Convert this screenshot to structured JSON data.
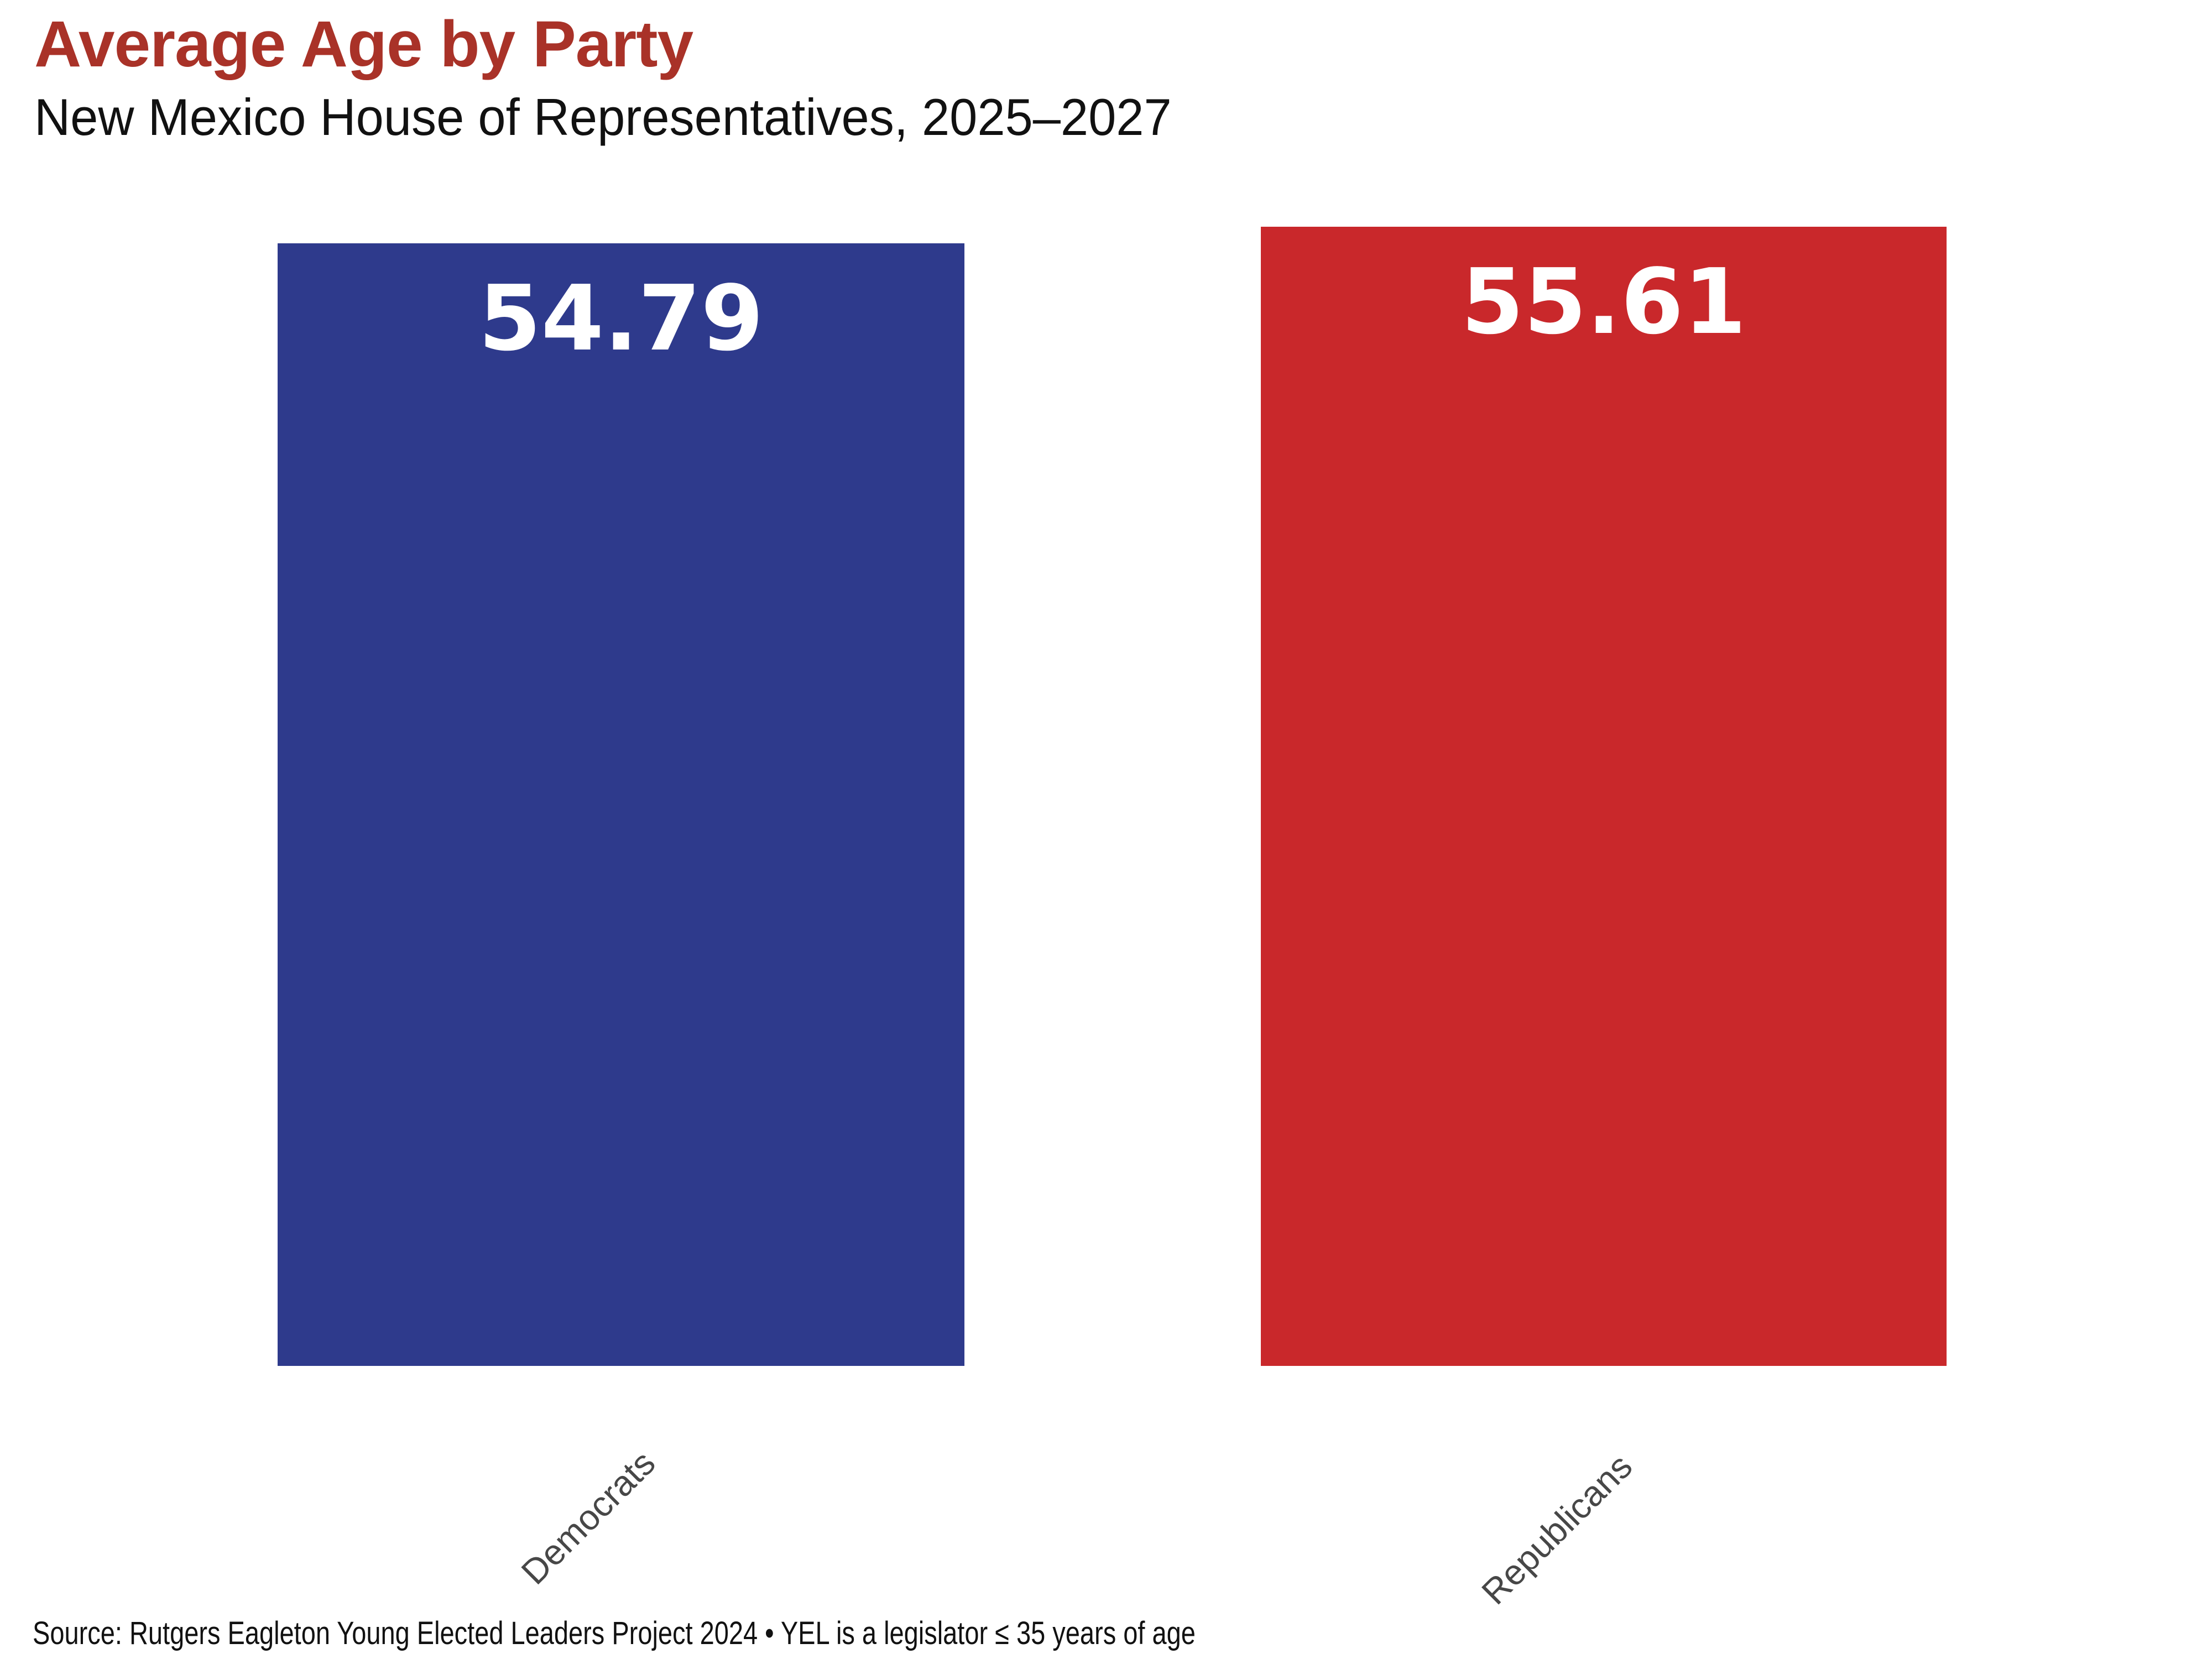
{
  "page": {
    "background": "#ffffff"
  },
  "chart_data": {
    "type": "bar",
    "title": "Average Age by Party",
    "subtitle": "New Mexico House of Representatives, 2025–2027",
    "source": "Source: Rutgers Eagleton Young Elected Leaders Project 2024 • YEL is a legislator ≤ 35 years of age",
    "categories": [
      "Democrats",
      "Republicans"
    ],
    "values": [
      54.79,
      55.61
    ],
    "value_labels": [
      "54.79",
      "55.61"
    ],
    "colors": [
      "#2E3A8C",
      "#C9282B"
    ],
    "title_color": "#A93228",
    "subtitle_color": "#111111",
    "tick_label_color": "#474747",
    "value_label_color": "#FFFFFF",
    "source_color": "#111111",
    "ylim": [
      0,
      56
    ],
    "grid": false,
    "legend": false,
    "value_label_position": "inside-top",
    "tick_label_rotation_deg": 45
  }
}
